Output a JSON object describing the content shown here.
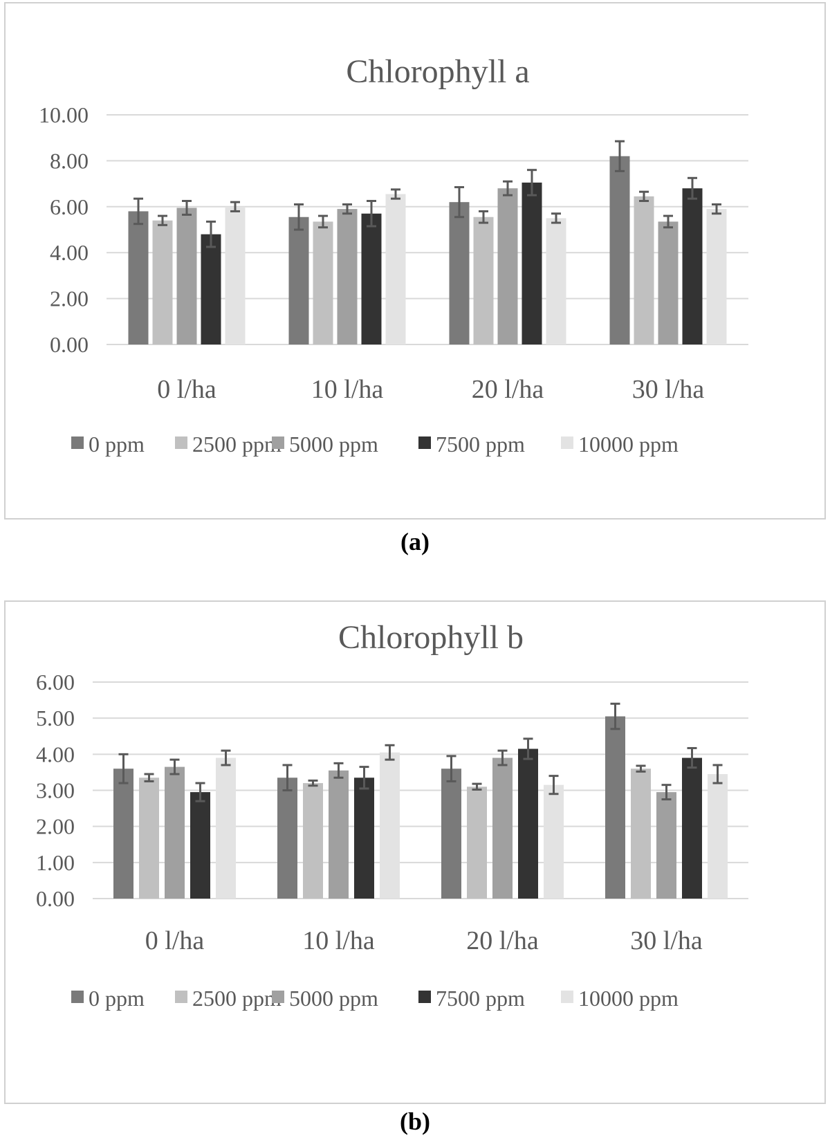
{
  "chart_data": [
    {
      "type": "bar",
      "title": "Chlorophyll a",
      "categories": [
        "0 l/ha",
        "10 l/ha",
        "20 l/ha",
        "30 l/ha"
      ],
      "ylim": [
        0,
        10
      ],
      "yticks": [
        "0.00",
        "2.00",
        "4.00",
        "6.00",
        "8.00",
        "10.00"
      ],
      "ytick_values": [
        0,
        2,
        4,
        6,
        8,
        10
      ],
      "xlabel": "",
      "ylabel": "",
      "grid": true,
      "legend_position": "bottom",
      "series": [
        {
          "name": "0 ppm",
          "color": "#7a7a7a",
          "values": [
            5.8,
            5.55,
            6.2,
            8.2
          ],
          "errors": [
            0.55,
            0.55,
            0.65,
            0.65
          ]
        },
        {
          "name": "2500 ppm",
          "color": "#c0c0c0",
          "values": [
            5.4,
            5.35,
            5.55,
            6.45
          ],
          "errors": [
            0.2,
            0.25,
            0.25,
            0.2
          ]
        },
        {
          "name": "5000 ppm",
          "color": "#a0a0a0",
          "values": [
            5.95,
            5.9,
            6.8,
            5.35
          ],
          "errors": [
            0.3,
            0.2,
            0.3,
            0.25
          ]
        },
        {
          "name": "7500 ppm",
          "color": "#333333",
          "values": [
            4.8,
            5.7,
            7.05,
            6.8
          ],
          "errors": [
            0.55,
            0.55,
            0.55,
            0.45
          ]
        },
        {
          "name": "10000 ppm",
          "color": "#e3e3e3",
          "values": [
            6.0,
            6.55,
            5.5,
            5.9
          ],
          "errors": [
            0.2,
            0.2,
            0.2,
            0.2
          ]
        }
      ],
      "panel_label": "(a)"
    },
    {
      "type": "bar",
      "title": "Chlorophyll b",
      "categories": [
        "0 l/ha",
        "10 l/ha",
        "20 l/ha",
        "30 l/ha"
      ],
      "ylim": [
        0,
        6
      ],
      "yticks": [
        "0.00",
        "1.00",
        "2.00",
        "3.00",
        "4.00",
        "5.00",
        "6.00"
      ],
      "ytick_values": [
        0,
        1,
        2,
        3,
        4,
        5,
        6
      ],
      "xlabel": "",
      "ylabel": "",
      "grid": true,
      "legend_position": "bottom",
      "series": [
        {
          "name": "0 ppm",
          "color": "#7a7a7a",
          "values": [
            3.6,
            3.35,
            3.6,
            5.05
          ],
          "errors": [
            0.4,
            0.35,
            0.35,
            0.35
          ]
        },
        {
          "name": "2500 ppm",
          "color": "#c0c0c0",
          "values": [
            3.35,
            3.2,
            3.1,
            3.6
          ],
          "errors": [
            0.1,
            0.07,
            0.08,
            0.08
          ]
        },
        {
          "name": "5000 ppm",
          "color": "#a0a0a0",
          "values": [
            3.65,
            3.55,
            3.9,
            2.95
          ],
          "errors": [
            0.2,
            0.2,
            0.2,
            0.2
          ]
        },
        {
          "name": "7500 ppm",
          "color": "#333333",
          "values": [
            2.95,
            3.35,
            4.15,
            3.9
          ],
          "errors": [
            0.25,
            0.3,
            0.28,
            0.27
          ]
        },
        {
          "name": "10000 ppm",
          "color": "#e3e3e3",
          "values": [
            3.9,
            4.05,
            3.15,
            3.45
          ],
          "errors": [
            0.2,
            0.2,
            0.25,
            0.25
          ]
        }
      ],
      "panel_label": "(b)"
    }
  ]
}
